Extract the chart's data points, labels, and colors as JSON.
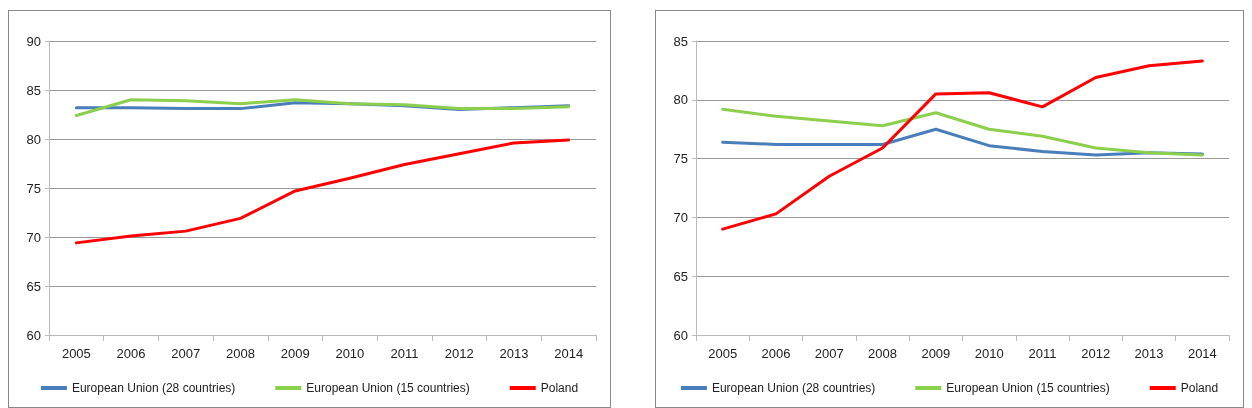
{
  "chart_data": [
    {
      "type": "line",
      "categories": [
        "2005",
        "2006",
        "2007",
        "2008",
        "2009",
        "2010",
        "2011",
        "2012",
        "2013",
        "2014"
      ],
      "series": [
        {
          "name": "European Union (28 countries)",
          "color": "#4a7ebb",
          "values": [
            83.2,
            83.2,
            83.1,
            83.1,
            83.7,
            83.6,
            83.4,
            83.0,
            83.2,
            83.4
          ]
        },
        {
          "name": "European Union (15 countries)",
          "color": "#8ccf4d",
          "values": [
            82.4,
            84.0,
            83.9,
            83.6,
            84.0,
            83.6,
            83.5,
            83.1,
            83.1,
            83.3
          ]
        },
        {
          "name": "Poland",
          "color": "#ff0000",
          "values": [
            69.4,
            70.1,
            70.6,
            71.9,
            74.7,
            76.0,
            77.4,
            78.5,
            79.6,
            79.9
          ]
        }
      ],
      "ylim": [
        60,
        90
      ],
      "yticks": [
        60,
        65,
        70,
        75,
        80,
        85,
        90
      ],
      "grid": "y",
      "legend": "bottom",
      "marker": "none",
      "line_style": "solid"
    },
    {
      "type": "line",
      "categories": [
        "2005",
        "2006",
        "2007",
        "2008",
        "2009",
        "2010",
        "2011",
        "2012",
        "2013",
        "2014"
      ],
      "series": [
        {
          "name": "European Union (28 countries)",
          "color": "#4a7ebb",
          "values": [
            76.4,
            76.2,
            76.2,
            76.2,
            77.5,
            76.1,
            75.6,
            75.3,
            75.5,
            75.4
          ]
        },
        {
          "name": "European Union (15 countries)",
          "color": "#8ccf4d",
          "values": [
            79.2,
            78.6,
            78.2,
            77.8,
            78.9,
            77.5,
            76.9,
            75.9,
            75.5,
            75.3
          ]
        },
        {
          "name": "Poland",
          "color": "#ff0000",
          "values": [
            69.0,
            70.3,
            73.5,
            75.9,
            80.5,
            80.6,
            79.4,
            81.9,
            82.9,
            83.3
          ]
        }
      ],
      "ylim": [
        60,
        85
      ],
      "yticks": [
        60,
        65,
        70,
        75,
        80,
        85
      ],
      "grid": "y",
      "legend": "bottom",
      "marker": "none",
      "line_style": "solid"
    }
  ]
}
